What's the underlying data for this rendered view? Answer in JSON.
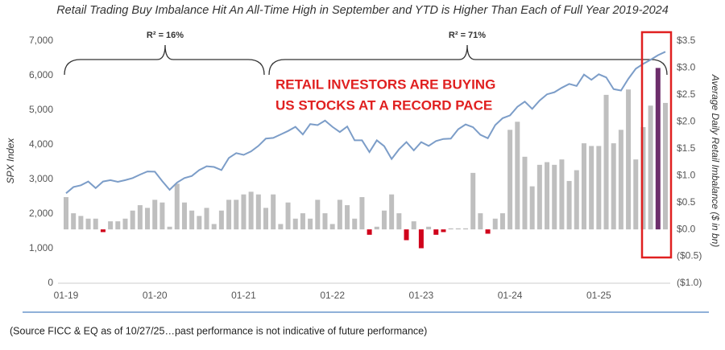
{
  "chart_data": {
    "type": "bar_line",
    "title": "Retail Trading Buy Imbalance Hit An All-Time High in September and YTD is Higher Than Each of Full Year 2019-2024",
    "ylabel": "SPX Index",
    "y2label": "Average Daily Retail Imbalance ($ in bn)",
    "annotations": [
      "R² = 16%",
      "R² = 71%",
      "RETAIL INVESTORS ARE BUYING",
      "US STOCKS AT A RECORD PACE"
    ],
    "note": "(Source FICC & EQ as of 10/27/25…past performance is not indicative of future performance)",
    "categories": [
      "01-19",
      null,
      null,
      null,
      null,
      null,
      null,
      null,
      null,
      null,
      null,
      null,
      "01-20",
      null,
      null,
      null,
      null,
      null,
      null,
      null,
      null,
      null,
      null,
      null,
      "01-21",
      null,
      null,
      null,
      null,
      null,
      null,
      null,
      null,
      null,
      null,
      null,
      "01-22",
      null,
      null,
      null,
      null,
      null,
      null,
      null,
      null,
      null,
      null,
      null,
      "01-23",
      null,
      null,
      null,
      null,
      null,
      null,
      null,
      null,
      null,
      null,
      null,
      "01-24",
      null,
      null,
      null,
      null,
      null,
      null,
      null,
      null,
      null,
      null,
      null,
      "01-25",
      null,
      null,
      null,
      null,
      null,
      null,
      null,
      null,
      null
    ],
    "ylim": [
      0,
      7000
    ],
    "yticks": [
      0,
      {
        "value": 1000,
        "label": "1,000"
      },
      {
        "value": 2000,
        "label": "2,000"
      },
      {
        "value": 3000,
        "label": "3,000"
      },
      {
        "value": 4000,
        "label": "4,000"
      },
      {
        "value": 5000,
        "label": "5,000"
      },
      {
        "value": 6000,
        "label": "6,000"
      },
      {
        "value": 7000,
        "label": "7,000"
      }
    ],
    "y2lim": [
      -1,
      3.5
    ],
    "y2ticks": [
      {
        "value": -1,
        "label": "($1.0)"
      },
      {
        "value": -0.5,
        "label": "($0.5)"
      },
      {
        "value": 0,
        "label": "$0.0"
      },
      {
        "value": 0.5,
        "label": "$0.5"
      },
      {
        "value": 1,
        "label": "$1.0"
      },
      {
        "value": 1.5,
        "label": "$1.5"
      },
      {
        "value": 2,
        "label": "$2.0"
      },
      {
        "value": 2.5,
        "label": "$2.5"
      },
      {
        "value": 3,
        "label": "$3.0"
      },
      {
        "value": 3.5,
        "label": "$3.5"
      }
    ],
    "series": [
      {
        "type": "bar",
        "axis": "y2",
        "values": [
          0.6,
          0.3,
          0.25,
          0.2,
          0.2,
          -0.05,
          0.15,
          0.15,
          0.2,
          0.35,
          0.45,
          0.4,
          0.55,
          0.5,
          0.05,
          0.85,
          0.5,
          0.35,
          0.25,
          0.4,
          0.1,
          0.35,
          0.55,
          0.55,
          0.65,
          0.7,
          0.65,
          0.4,
          0.65,
          0.1,
          0.5,
          0.2,
          0.3,
          0.2,
          0.55,
          0.3,
          0.1,
          0.55,
          0.45,
          0.2,
          0.6,
          -0.1,
          0.05,
          0.35,
          0.65,
          0.3,
          -0.2,
          0.15,
          -0.35,
          0.05,
          -0.1,
          -0.05,
          0.02,
          0.02,
          0.02,
          1.05,
          0.3,
          -0.08,
          0.2,
          0.3,
          1.85,
          2.0,
          1.35,
          0.8,
          1.2,
          1.25,
          1.2,
          1.3,
          0.9,
          1.1,
          1.6,
          1.55,
          1.55,
          2.5,
          1.6,
          1.85,
          2.6,
          1.3,
          1.9,
          2.3,
          3.0,
          2.35
        ],
        "colors": [
          "#bfbfbf",
          "#bfbfbf",
          "#bfbfbf",
          "#bfbfbf",
          "#bfbfbf",
          "#d0021b",
          "#bfbfbf",
          "#bfbfbf",
          "#bfbfbf",
          "#bfbfbf",
          "#bfbfbf",
          "#bfbfbf",
          "#bfbfbf",
          "#bfbfbf",
          "#bfbfbf",
          "#bfbfbf",
          "#bfbfbf",
          "#bfbfbf",
          "#bfbfbf",
          "#bfbfbf",
          "#bfbfbf",
          "#bfbfbf",
          "#bfbfbf",
          "#bfbfbf",
          "#bfbfbf",
          "#bfbfbf",
          "#bfbfbf",
          "#bfbfbf",
          "#bfbfbf",
          "#bfbfbf",
          "#bfbfbf",
          "#bfbfbf",
          "#bfbfbf",
          "#bfbfbf",
          "#bfbfbf",
          "#bfbfbf",
          "#bfbfbf",
          "#bfbfbf",
          "#bfbfbf",
          "#bfbfbf",
          "#bfbfbf",
          "#d0021b",
          "#bfbfbf",
          "#bfbfbf",
          "#bfbfbf",
          "#bfbfbf",
          "#d0021b",
          "#bfbfbf",
          "#d0021b",
          "#bfbfbf",
          "#d0021b",
          "#d0021b",
          "#bfbfbf",
          "#bfbfbf",
          "#bfbfbf",
          "#bfbfbf",
          "#bfbfbf",
          "#d0021b",
          "#bfbfbf",
          "#bfbfbf",
          "#bfbfbf",
          "#bfbfbf",
          "#bfbfbf",
          "#bfbfbf",
          "#bfbfbf",
          "#bfbfbf",
          "#bfbfbf",
          "#bfbfbf",
          "#bfbfbf",
          "#bfbfbf",
          "#bfbfbf",
          "#bfbfbf",
          "#bfbfbf",
          "#bfbfbf",
          "#bfbfbf",
          "#bfbfbf",
          "#bfbfbf",
          "#bfbfbf",
          "#bfbfbf",
          "#bfbfbf",
          "#6d2e6b",
          "#bfbfbf"
        ]
      },
      {
        "type": "line",
        "color": "#7c9dc8",
        "values": [
          2600,
          2780,
          2830,
          2940,
          2750,
          2940,
          2980,
          2930,
          2980,
          3040,
          3140,
          3230,
          3225,
          2950,
          2700,
          2910,
          3040,
          3100,
          3270,
          3380,
          3360,
          3270,
          3620,
          3760,
          3710,
          3810,
          3970,
          4180,
          4200,
          4300,
          4400,
          4520,
          4300,
          4600,
          4570,
          4700,
          4520,
          4370,
          4530,
          4130,
          4130,
          3790,
          4130,
          3960,
          3590,
          3870,
          4080,
          3840,
          4080,
          3970,
          4110,
          4170,
          4180,
          4450,
          4590,
          4510,
          4290,
          4190,
          4570,
          4770,
          4850,
          5100,
          5250,
          5040,
          5280,
          5460,
          5520,
          5650,
          5760,
          5700,
          6030,
          5880,
          6040,
          5950,
          5610,
          5570,
          5910,
          6200,
          6340,
          6460,
          6590,
          6690
        ]
      }
    ]
  }
}
